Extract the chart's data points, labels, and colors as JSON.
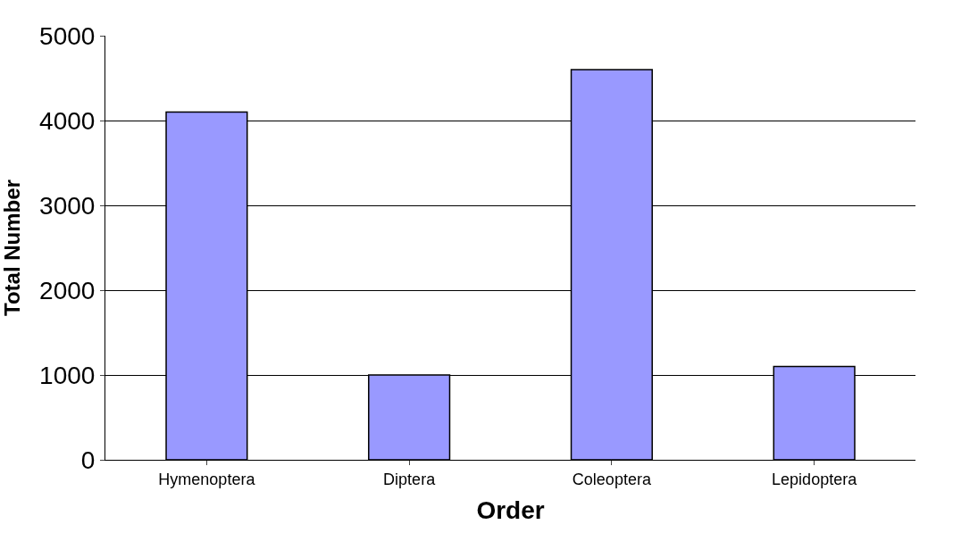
{
  "chart_data": {
    "type": "bar",
    "xlabel": "Order",
    "ylabel": "Total Number",
    "categories": [
      "Hymenoptera",
      "Diptera",
      "Coleoptera",
      "Lepidoptera"
    ],
    "values": [
      4100,
      1000,
      4600,
      1100
    ],
    "color": "#9999ff",
    "ylim": [
      0,
      5000
    ],
    "yticks": [
      0,
      1000,
      2000,
      3000,
      4000,
      5000
    ],
    "grid": "y",
    "legend": false
  }
}
